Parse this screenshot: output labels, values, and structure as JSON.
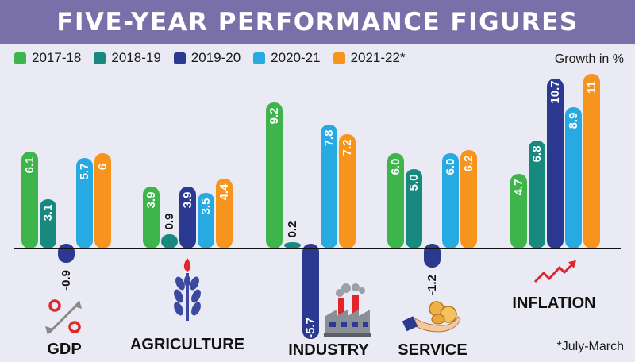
{
  "title": "FIVE-YEAR PERFORMANCE FIGURES",
  "unit_label": "Growth in %",
  "footnote": "*July-March",
  "legend": [
    {
      "label": "2017-18",
      "color": "#3db54a"
    },
    {
      "label": "2018-19",
      "color": "#17897f"
    },
    {
      "label": "2019-20",
      "color": "#2b3990"
    },
    {
      "label": "2020-21",
      "color": "#27aae1"
    },
    {
      "label": "2021-22*",
      "color": "#f7941d"
    }
  ],
  "chart_data": {
    "type": "bar",
    "title": "FIVE-YEAR PERFORMANCE FIGURES",
    "ylabel": "Growth in %",
    "categories": [
      "GDP",
      "AGRICULTURE",
      "INDUSTRY",
      "SERVICE",
      "INFLATION"
    ],
    "series": [
      {
        "name": "2017-18",
        "color": "#3db54a",
        "values": [
          6.1,
          3.9,
          9.2,
          6.0,
          4.7
        ],
        "labels": [
          "6.1",
          "3.9",
          "9.2",
          "6.0",
          "4.7"
        ]
      },
      {
        "name": "2018-19",
        "color": "#17897f",
        "values": [
          3.1,
          0.9,
          0.2,
          5.0,
          6.8
        ],
        "labels": [
          "3.1",
          "0.9",
          "0.2",
          "5.0",
          "6.8"
        ]
      },
      {
        "name": "2019-20",
        "color": "#2b3990",
        "values": [
          -0.9,
          3.9,
          -5.7,
          -1.2,
          10.7
        ],
        "labels": [
          "-0.9",
          "3.9",
          "-5.7",
          "-1.2",
          "10.7"
        ]
      },
      {
        "name": "2020-21",
        "color": "#27aae1",
        "values": [
          5.7,
          3.5,
          7.8,
          6.0,
          8.9
        ],
        "labels": [
          "5.7",
          "3.5",
          "7.8",
          "6.0",
          "8.9"
        ]
      },
      {
        "name": "2021-22*",
        "color": "#f7941d",
        "values": [
          6,
          4.4,
          7.2,
          6.2,
          11
        ],
        "labels": [
          "6",
          "4.4",
          "7.2",
          "6.2",
          "11"
        ]
      }
    ],
    "ylim": [
      -6,
      11.5
    ],
    "grid": false,
    "legend_position": "top-left"
  },
  "icons": [
    "percent-icon",
    "wheat-icon",
    "factory-icon",
    "coins-hand-icon",
    "rising-arrow-icon"
  ],
  "colors": {
    "header": "#7a70a9",
    "background": "#e9eaf4",
    "inflation_arrow": "#e0262b",
    "baseline": "#111111"
  }
}
